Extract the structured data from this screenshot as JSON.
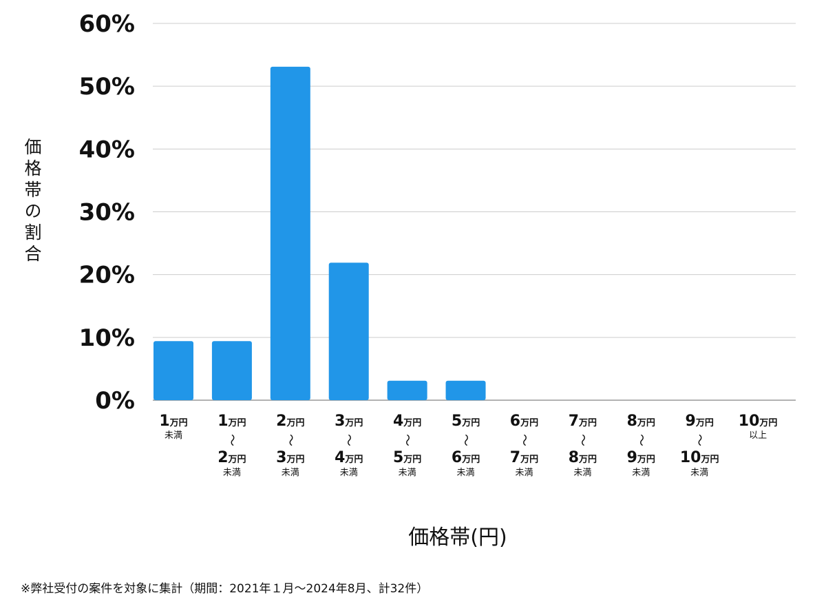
{
  "chart_data": {
    "type": "bar",
    "ylabel": "価格帯の割合",
    "xlabel": "価格帯(円)",
    "ylim": [
      0,
      60
    ],
    "yticks": [
      "0%",
      "10%",
      "20%",
      "30%",
      "40%",
      "50%",
      "60%"
    ],
    "grid": true,
    "bar_color": "#2196E8",
    "categories": [
      {
        "from": "1",
        "to": null,
        "unit": "万円",
        "suffix": "未満",
        "value": 9.4
      },
      {
        "from": "1",
        "to": "2",
        "unit": "万円",
        "suffix": "未満",
        "value": 9.4
      },
      {
        "from": "2",
        "to": "3",
        "unit": "万円",
        "suffix": "未満",
        "value": 53.1
      },
      {
        "from": "3",
        "to": "4",
        "unit": "万円",
        "suffix": "未満",
        "value": 21.9
      },
      {
        "from": "4",
        "to": "5",
        "unit": "万円",
        "suffix": "未満",
        "value": 3.1
      },
      {
        "from": "5",
        "to": "6",
        "unit": "万円",
        "suffix": "未満",
        "value": 3.1
      },
      {
        "from": "6",
        "to": "7",
        "unit": "万円",
        "suffix": "未満",
        "value": 0
      },
      {
        "from": "7",
        "to": "8",
        "unit": "万円",
        "suffix": "未満",
        "value": 0
      },
      {
        "from": "8",
        "to": "9",
        "unit": "万円",
        "suffix": "未満",
        "value": 0
      },
      {
        "from": "9",
        "to": "10",
        "unit": "万円",
        "suffix": "未満",
        "value": 0
      },
      {
        "from": "10",
        "to": null,
        "unit": "万円",
        "suffix": "以上",
        "value": 0
      }
    ],
    "range_separator": "〜"
  },
  "footnote": "※弊社受付の案件を対象に集計（期間：2021年１月〜2024年8月、計32件）"
}
